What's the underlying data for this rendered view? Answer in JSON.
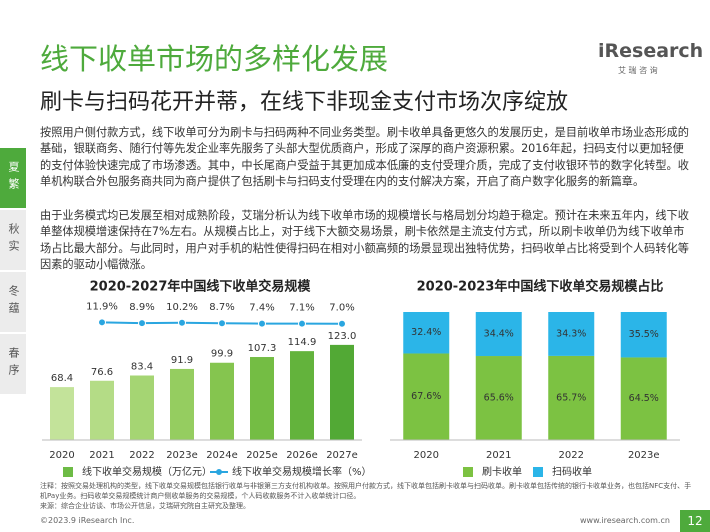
{
  "header": {
    "title": "线下收单市场的多样化发展",
    "subtitle": "刷卡与扫码花开并蒂，在线下非现金支付市场次序绽放"
  },
  "logo": {
    "name": "iResearch",
    "cn": "艾 瑞 咨 询"
  },
  "sidebar": [
    "夏繁",
    "秋实",
    "冬蕴",
    "春序"
  ],
  "paragraphs": [
    "按照用户侧付款方式，线下收单可分为刷卡与扫码两种不同业务类型。刷卡收单具备更悠久的发展历史，是目前收单市场业态形成的基础，银联商务、随行付等先发企业率先服务了头部大型优质商户，形成了深厚的商户资源积累。2016年起，扫码支付以更加轻便的支付体验快速完成了市场渗透。其中，中长尾商户受益于其更加成本低廉的支付受理介质，完成了支付收银环节的数字化转型。收单机构联合外包服务商共同为商户提供了包括刷卡与扫码支付受理在内的支付解决方案，开启了商户数字化服务的新篇章。",
    "由于业务模式均已发展至相对成熟阶段，艾瑞分析认为线下收单市场的规模增长与格局划分均趋于稳定。预计在未来五年内，线下收单整体规模增速保持在7%左右。从规模占比上，对于线下大额交易场景，刷卡依然是主流支付方式，所以刷卡收单仍为线下收单市场占比最大部分。与此同时，用户对手机的粘性使得扫码在相对小额高频的场景显现出独特优势，扫码收单占比将受到个人码转化等因素的驱动小幅微涨。"
  ],
  "chart_data": [
    {
      "type": "bar",
      "title": "2020-2027年中国线下收单交易规模",
      "categories": [
        "2020",
        "2021",
        "2022",
        "2023e",
        "2024e",
        "2025e",
        "2026e",
        "2027e"
      ],
      "ylim": [
        0,
        150
      ],
      "y2lim": [
        -400,
        20
      ],
      "series": [
        {
          "name": "线下收单交易规模（万亿元）",
          "color": "#6dbb45",
          "colors": [
            "#c3e39a",
            "#b4dc86",
            "#a5d573",
            "#95cd60",
            "#85c54f",
            "#74bd44",
            "#63b33c",
            "#52a935"
          ],
          "values": [
            68.4,
            76.6,
            83.4,
            91.9,
            99.9,
            107.3,
            114.9,
            123.0
          ],
          "value_labels": [
            "68.4",
            "76.6",
            "83.4",
            "91.9",
            "99.9",
            "107.3",
            "114.9",
            "123.0"
          ]
        },
        {
          "name": "线下收单交易规模增长率（%）",
          "color": "#2aa6e0",
          "axis": "y2",
          "values": [
            null,
            11.9,
            8.9,
            10.2,
            8.7,
            7.4,
            7.1,
            7.0
          ],
          "value_labels": [
            null,
            "11.9%",
            "8.9%",
            "10.2%",
            "8.7%",
            "7.4%",
            "7.1%",
            "7.0%"
          ]
        }
      ]
    },
    {
      "type": "stacked_bar",
      "title": "2020-2023年中国线下收单交易规模占比",
      "categories": [
        "2020",
        "2021",
        "2022",
        "2023e"
      ],
      "ylim": [
        0,
        100
      ],
      "series": [
        {
          "name": "刷卡收单",
          "color": "#7cc242",
          "values": [
            67.6,
            65.6,
            65.7,
            64.5
          ],
          "value_labels": [
            "67.6%",
            "65.6%",
            "65.7%",
            "64.5%"
          ]
        },
        {
          "name": "扫码收单",
          "color": "#2bb5e8",
          "values": [
            32.4,
            34.4,
            34.3,
            35.5
          ],
          "value_labels": [
            "32.4%",
            "34.4%",
            "34.3%",
            "35.5%"
          ]
        }
      ]
    }
  ],
  "notes": [
    "注释：按照交易处理机构的类型，线下收单交易规模包括银行收单与非银第三方支付机构收单。按照用户付款方式，线下收单包括刷卡收单与扫码收单。刷卡收单包括传统的银行卡收单业务，也包括NFC支付、手机Pay业务。扫码收单交易规模统计商户侧收单服务的交易规模，个人码收款服务不计入收单统计口径。",
    "来源：综合企业访谈、市场公开信息，艾瑞研究院自主研究及整理。"
  ],
  "footer": {
    "copyright": "©2023.9 iResearch Inc.",
    "url": "www.iresearch.com.cn",
    "page": "12"
  }
}
